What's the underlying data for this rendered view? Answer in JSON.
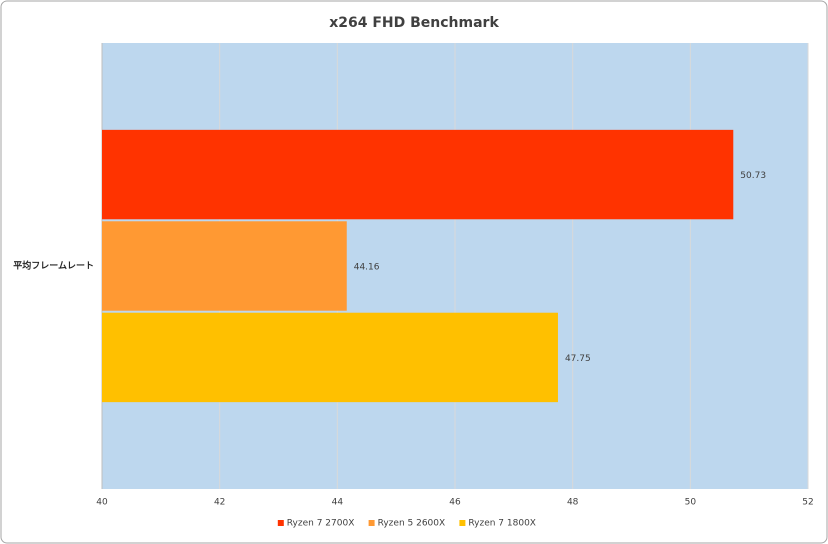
{
  "chart_data": {
    "type": "bar",
    "orientation": "horizontal",
    "title": "x264 FHD Benchmark",
    "categories": [
      "平均フレームレート"
    ],
    "series": [
      {
        "name": "Ryzen 7 2700X",
        "color": "#ff3300",
        "values": [
          50.73
        ]
      },
      {
        "name": "Ryzen 5 2600X",
        "color": "#ff9933",
        "values": [
          44.16
        ]
      },
      {
        "name": "Ryzen 7 1800X",
        "color": "#ffc000",
        "values": [
          47.75
        ]
      }
    ],
    "xlim": [
      40,
      52
    ],
    "xticks": [
      40,
      42,
      44,
      46,
      48,
      50,
      52
    ],
    "grid": true,
    "plot_background": "#bdd7ee",
    "legend": "bottom"
  }
}
